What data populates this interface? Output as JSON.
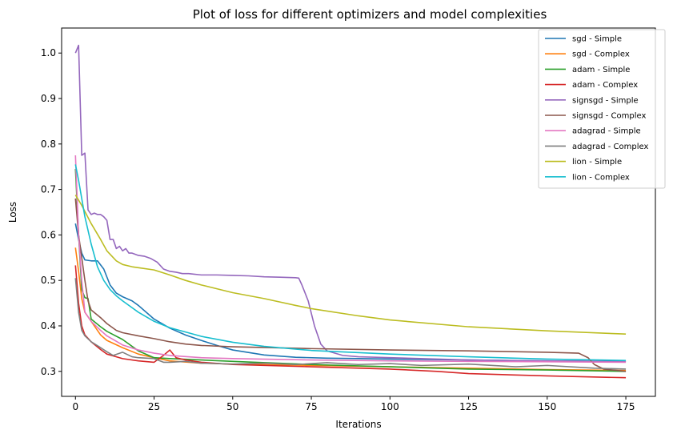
{
  "chart_data": {
    "type": "line",
    "title": "Plot of loss for different optimizers and model complexities",
    "xlabel": "Iterations",
    "ylabel": "Loss",
    "xlim": [
      -4.4,
      184.4
    ],
    "ylim": [
      0.245,
      1.055
    ],
    "xticks": [
      0,
      25,
      50,
      75,
      100,
      125,
      150,
      175
    ],
    "yticks": [
      0.3,
      0.4,
      0.5,
      0.6,
      0.7,
      0.8,
      0.9,
      1.0
    ],
    "grid": false,
    "legend_position": "top-right",
    "series": [
      {
        "name": "sgd - Simple",
        "color": "#1f77b4",
        "points": [
          [
            0,
            0.625
          ],
          [
            1,
            0.59
          ],
          [
            2,
            0.56
          ],
          [
            3,
            0.545
          ],
          [
            5,
            0.543
          ],
          [
            7,
            0.543
          ],
          [
            9,
            0.525
          ],
          [
            11,
            0.49
          ],
          [
            13,
            0.472
          ],
          [
            15,
            0.464
          ],
          [
            18,
            0.455
          ],
          [
            20,
            0.445
          ],
          [
            25,
            0.415
          ],
          [
            30,
            0.395
          ],
          [
            35,
            0.38
          ],
          [
            40,
            0.368
          ],
          [
            45,
            0.357
          ],
          [
            50,
            0.347
          ],
          [
            60,
            0.336
          ],
          [
            70,
            0.331
          ],
          [
            80,
            0.329
          ],
          [
            90,
            0.328
          ],
          [
            100,
            0.327
          ],
          [
            125,
            0.325
          ],
          [
            150,
            0.323
          ],
          [
            175,
            0.322
          ]
        ]
      },
      {
        "name": "sgd - Complex",
        "color": "#ff7f0e",
        "points": [
          [
            0,
            0.572
          ],
          [
            1,
            0.52
          ],
          [
            2,
            0.46
          ],
          [
            3,
            0.43
          ],
          [
            5,
            0.41
          ],
          [
            8,
            0.38
          ],
          [
            10,
            0.368
          ],
          [
            15,
            0.352
          ],
          [
            20,
            0.338
          ],
          [
            25,
            0.33
          ],
          [
            30,
            0.323
          ],
          [
            40,
            0.318
          ],
          [
            50,
            0.316
          ],
          [
            75,
            0.313
          ],
          [
            100,
            0.31
          ],
          [
            125,
            0.307
          ],
          [
            150,
            0.304
          ],
          [
            175,
            0.302
          ]
        ]
      },
      {
        "name": "adam - Simple",
        "color": "#2ca02c",
        "points": [
          [
            0,
            0.745
          ],
          [
            1,
            0.6
          ],
          [
            2,
            0.48
          ],
          [
            3,
            0.462
          ],
          [
            4,
            0.46
          ],
          [
            5,
            0.415
          ],
          [
            8,
            0.398
          ],
          [
            10,
            0.388
          ],
          [
            15,
            0.37
          ],
          [
            20,
            0.345
          ],
          [
            25,
            0.33
          ],
          [
            30,
            0.328
          ],
          [
            40,
            0.325
          ],
          [
            50,
            0.322
          ],
          [
            75,
            0.315
          ],
          [
            100,
            0.31
          ],
          [
            125,
            0.305
          ],
          [
            150,
            0.303
          ],
          [
            175,
            0.3
          ]
        ]
      },
      {
        "name": "adam - Complex",
        "color": "#d62728",
        "points": [
          [
            0,
            0.533
          ],
          [
            1,
            0.45
          ],
          [
            2,
            0.4
          ],
          [
            3,
            0.38
          ],
          [
            5,
            0.365
          ],
          [
            8,
            0.348
          ],
          [
            10,
            0.338
          ],
          [
            15,
            0.328
          ],
          [
            20,
            0.323
          ],
          [
            25,
            0.32
          ],
          [
            28,
            0.335
          ],
          [
            30,
            0.347
          ],
          [
            32,
            0.33
          ],
          [
            35,
            0.325
          ],
          [
            40,
            0.32
          ],
          [
            50,
            0.315
          ],
          [
            75,
            0.31
          ],
          [
            100,
            0.305
          ],
          [
            115,
            0.3
          ],
          [
            125,
            0.295
          ],
          [
            150,
            0.29
          ],
          [
            175,
            0.286
          ]
        ]
      },
      {
        "name": "signsgd - Simple",
        "color": "#9467bd",
        "points": [
          [
            0,
            1.0
          ],
          [
            1,
            1.017
          ],
          [
            2,
            0.775
          ],
          [
            3,
            0.78
          ],
          [
            4,
            0.655
          ],
          [
            5,
            0.645
          ],
          [
            6,
            0.648
          ],
          [
            7,
            0.645
          ],
          [
            8,
            0.645
          ],
          [
            9,
            0.64
          ],
          [
            10,
            0.632
          ],
          [
            11,
            0.59
          ],
          [
            12,
            0.59
          ],
          [
            13,
            0.57
          ],
          [
            14,
            0.575
          ],
          [
            15,
            0.565
          ],
          [
            16,
            0.57
          ],
          [
            17,
            0.56
          ],
          [
            18,
            0.56
          ],
          [
            20,
            0.555
          ],
          [
            22,
            0.553
          ],
          [
            24,
            0.548
          ],
          [
            26,
            0.54
          ],
          [
            28,
            0.525
          ],
          [
            30,
            0.52
          ],
          [
            32,
            0.518
          ],
          [
            34,
            0.515
          ],
          [
            36,
            0.515
          ],
          [
            40,
            0.512
          ],
          [
            45,
            0.512
          ],
          [
            50,
            0.511
          ],
          [
            55,
            0.51
          ],
          [
            60,
            0.508
          ],
          [
            65,
            0.507
          ],
          [
            70,
            0.506
          ],
          [
            71,
            0.505
          ],
          [
            72,
            0.49
          ],
          [
            74,
            0.455
          ],
          [
            76,
            0.4
          ],
          [
            78,
            0.36
          ],
          [
            80,
            0.345
          ],
          [
            85,
            0.335
          ],
          [
            90,
            0.332
          ],
          [
            100,
            0.33
          ],
          [
            125,
            0.325
          ],
          [
            150,
            0.323
          ],
          [
            175,
            0.321
          ]
        ]
      },
      {
        "name": "signsgd - Complex",
        "color": "#8c564b",
        "points": [
          [
            0,
            0.68
          ],
          [
            1,
            0.6
          ],
          [
            2,
            0.55
          ],
          [
            3,
            0.5
          ],
          [
            4,
            0.455
          ],
          [
            5,
            0.435
          ],
          [
            8,
            0.418
          ],
          [
            10,
            0.405
          ],
          [
            13,
            0.39
          ],
          [
            15,
            0.385
          ],
          [
            20,
            0.378
          ],
          [
            25,
            0.372
          ],
          [
            30,
            0.365
          ],
          [
            35,
            0.36
          ],
          [
            40,
            0.357
          ],
          [
            50,
            0.354
          ],
          [
            75,
            0.35
          ],
          [
            100,
            0.347
          ],
          [
            125,
            0.345
          ],
          [
            150,
            0.342
          ],
          [
            160,
            0.34
          ],
          [
            163,
            0.33
          ],
          [
            165,
            0.315
          ],
          [
            168,
            0.305
          ],
          [
            175,
            0.3
          ]
        ]
      },
      {
        "name": "adagrad - Simple",
        "color": "#e377c2",
        "points": [
          [
            0,
            0.775
          ],
          [
            1,
            0.6
          ],
          [
            2,
            0.5
          ],
          [
            3,
            0.43
          ],
          [
            5,
            0.41
          ],
          [
            8,
            0.39
          ],
          [
            10,
            0.378
          ],
          [
            15,
            0.358
          ],
          [
            20,
            0.347
          ],
          [
            25,
            0.34
          ],
          [
            30,
            0.335
          ],
          [
            40,
            0.33
          ],
          [
            50,
            0.328
          ],
          [
            75,
            0.325
          ],
          [
            100,
            0.323
          ],
          [
            125,
            0.322
          ],
          [
            150,
            0.321
          ],
          [
            175,
            0.32
          ]
        ]
      },
      {
        "name": "adagrad - Complex",
        "color": "#7f7f7f",
        "points": [
          [
            0,
            0.505
          ],
          [
            1,
            0.43
          ],
          [
            2,
            0.39
          ],
          [
            3,
            0.378
          ],
          [
            5,
            0.365
          ],
          [
            8,
            0.352
          ],
          [
            10,
            0.343
          ],
          [
            12,
            0.335
          ],
          [
            15,
            0.342
          ],
          [
            18,
            0.332
          ],
          [
            20,
            0.33
          ],
          [
            25,
            0.328
          ],
          [
            28,
            0.32
          ],
          [
            30,
            0.32
          ],
          [
            35,
            0.322
          ],
          [
            40,
            0.318
          ],
          [
            50,
            0.316
          ],
          [
            60,
            0.318
          ],
          [
            70,
            0.315
          ],
          [
            80,
            0.319
          ],
          [
            90,
            0.315
          ],
          [
            100,
            0.317
          ],
          [
            110,
            0.313
          ],
          [
            125,
            0.316
          ],
          [
            140,
            0.31
          ],
          [
            150,
            0.313
          ],
          [
            165,
            0.307
          ],
          [
            175,
            0.305
          ]
        ]
      },
      {
        "name": "lion - Simple",
        "color": "#bcbd22",
        "points": [
          [
            0,
            0.688
          ],
          [
            2,
            0.665
          ],
          [
            5,
            0.625
          ],
          [
            8,
            0.59
          ],
          [
            10,
            0.565
          ],
          [
            13,
            0.543
          ],
          [
            15,
            0.535
          ],
          [
            18,
            0.53
          ],
          [
            20,
            0.528
          ],
          [
            25,
            0.523
          ],
          [
            30,
            0.512
          ],
          [
            35,
            0.5
          ],
          [
            40,
            0.49
          ],
          [
            50,
            0.473
          ],
          [
            60,
            0.46
          ],
          [
            70,
            0.445
          ],
          [
            75,
            0.438
          ],
          [
            90,
            0.422
          ],
          [
            100,
            0.413
          ],
          [
            125,
            0.398
          ],
          [
            150,
            0.389
          ],
          [
            175,
            0.382
          ]
        ]
      },
      {
        "name": "lion - Complex",
        "color": "#17becf",
        "points": [
          [
            0,
            0.755
          ],
          [
            1,
            0.72
          ],
          [
            2,
            0.68
          ],
          [
            3,
            0.64
          ],
          [
            5,
            0.58
          ],
          [
            7,
            0.53
          ],
          [
            9,
            0.5
          ],
          [
            11,
            0.48
          ],
          [
            13,
            0.466
          ],
          [
            15,
            0.455
          ],
          [
            18,
            0.44
          ],
          [
            20,
            0.43
          ],
          [
            25,
            0.41
          ],
          [
            30,
            0.396
          ],
          [
            40,
            0.377
          ],
          [
            50,
            0.364
          ],
          [
            60,
            0.355
          ],
          [
            75,
            0.346
          ],
          [
            100,
            0.338
          ],
          [
            125,
            0.332
          ],
          [
            150,
            0.327
          ],
          [
            175,
            0.324
          ]
        ]
      }
    ]
  }
}
